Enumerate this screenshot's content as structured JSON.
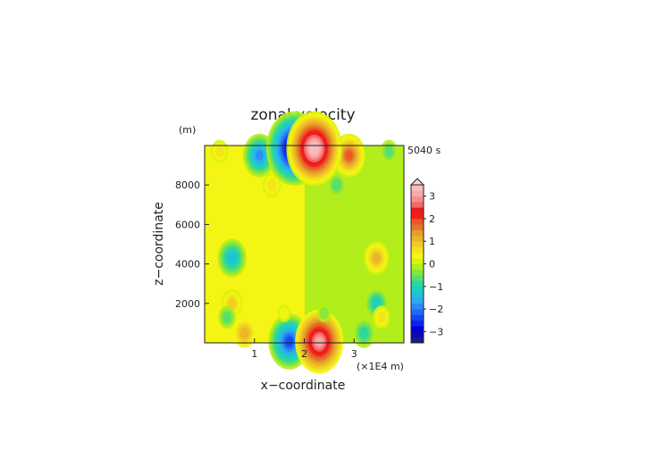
{
  "chart_data": {
    "type": "heatmap",
    "title": "zonal velocity",
    "time_label": "5040 s",
    "xlabel": "x−coordinate",
    "x_unit": "(×1E4 m)",
    "ylabel": "z−coordinate",
    "y_unit": "(m)",
    "xlim": [
      0,
      4
    ],
    "ylim": [
      0,
      10000
    ],
    "x_ticks": [
      "1",
      "2",
      "3"
    ],
    "x_tick_values": [
      1,
      2,
      3
    ],
    "y_ticks": [
      "2000",
      "4000",
      "6000",
      "8000"
    ],
    "y_tick_values": [
      2000,
      4000,
      6000,
      8000
    ],
    "colorbar": {
      "levels": [
        -3.5,
        -3.25,
        -3,
        -2.75,
        -2.5,
        -2.25,
        -2,
        -1.75,
        -1.5,
        -1.25,
        -1,
        -0.75,
        -0.5,
        -0.25,
        0,
        0.25,
        0.5,
        0.75,
        1,
        1.25,
        1.5,
        1.75,
        2,
        2.25,
        2.5,
        2.75,
        3,
        3.25,
        3.5
      ],
      "colors": [
        "#1a1a8c",
        "#0a0ab0",
        "#0000d8",
        "#0a24ee",
        "#1446f5",
        "#1e6af8",
        "#2a8af5",
        "#2fa8f0",
        "#22c0dc",
        "#1ecfbf",
        "#2ad6a0",
        "#52de72",
        "#86e53c",
        "#b2ed1c",
        "#dcf20c",
        "#f4f514",
        "#f4e21c",
        "#f0cc22",
        "#ecb228",
        "#e69e2a",
        "#e2762a",
        "#ec5622",
        "#f21e1e",
        "#e81c1c",
        "#f56868",
        "#f78e8e",
        "#f8aaaa",
        "#f8bcbc"
      ],
      "tick_labels": [
        "3",
        "2",
        "1",
        "0",
        "−1",
        "−2",
        "−3"
      ],
      "tick_values": [
        3,
        2,
        1,
        0,
        -1,
        -2,
        -3
      ],
      "extend": "both"
    },
    "features": [
      {
        "x": 0.55,
        "z": 4300,
        "value": -1.5
      },
      {
        "x": 3.45,
        "z": 4300,
        "value": 1.2
      },
      {
        "x": 0.55,
        "z": 2000,
        "value": 0.9
      },
      {
        "x": 3.45,
        "z": 2000,
        "value": -1.1
      },
      {
        "x": 0.45,
        "z": 1300,
        "value": -0.6
      },
      {
        "x": 3.55,
        "z": 1300,
        "value": 0.6
      },
      {
        "x": 0.8,
        "z": 500,
        "value": 1.0
      },
      {
        "x": 3.2,
        "z": 500,
        "value": -1.0
      },
      {
        "x": 1.5,
        "z": 200,
        "value": 0.7
      },
      {
        "x": 2.5,
        "z": 200,
        "value": -0.7
      },
      {
        "x": 1.7,
        "z": 60,
        "value": -2.5
      },
      {
        "x": 2.3,
        "z": 60,
        "value": 3.0
      },
      {
        "x": 1.35,
        "z": 8000,
        "value": 0.7
      },
      {
        "x": 2.65,
        "z": 8000,
        "value": -0.7
      },
      {
        "x": 1.1,
        "z": 9500,
        "value": -1.8
      },
      {
        "x": 2.9,
        "z": 9500,
        "value": 1.8
      },
      {
        "x": 1.8,
        "z": 9850,
        "value": -3.6
      },
      {
        "x": 2.2,
        "z": 9850,
        "value": 3.6
      },
      {
        "x": 0.3,
        "z": 9700,
        "value": 0.6
      },
      {
        "x": 3.7,
        "z": 9700,
        "value": -0.6
      },
      {
        "x": 1.6,
        "z": 1500,
        "value": 0.3
      },
      {
        "x": 2.4,
        "z": 1500,
        "value": -0.3
      }
    ]
  }
}
